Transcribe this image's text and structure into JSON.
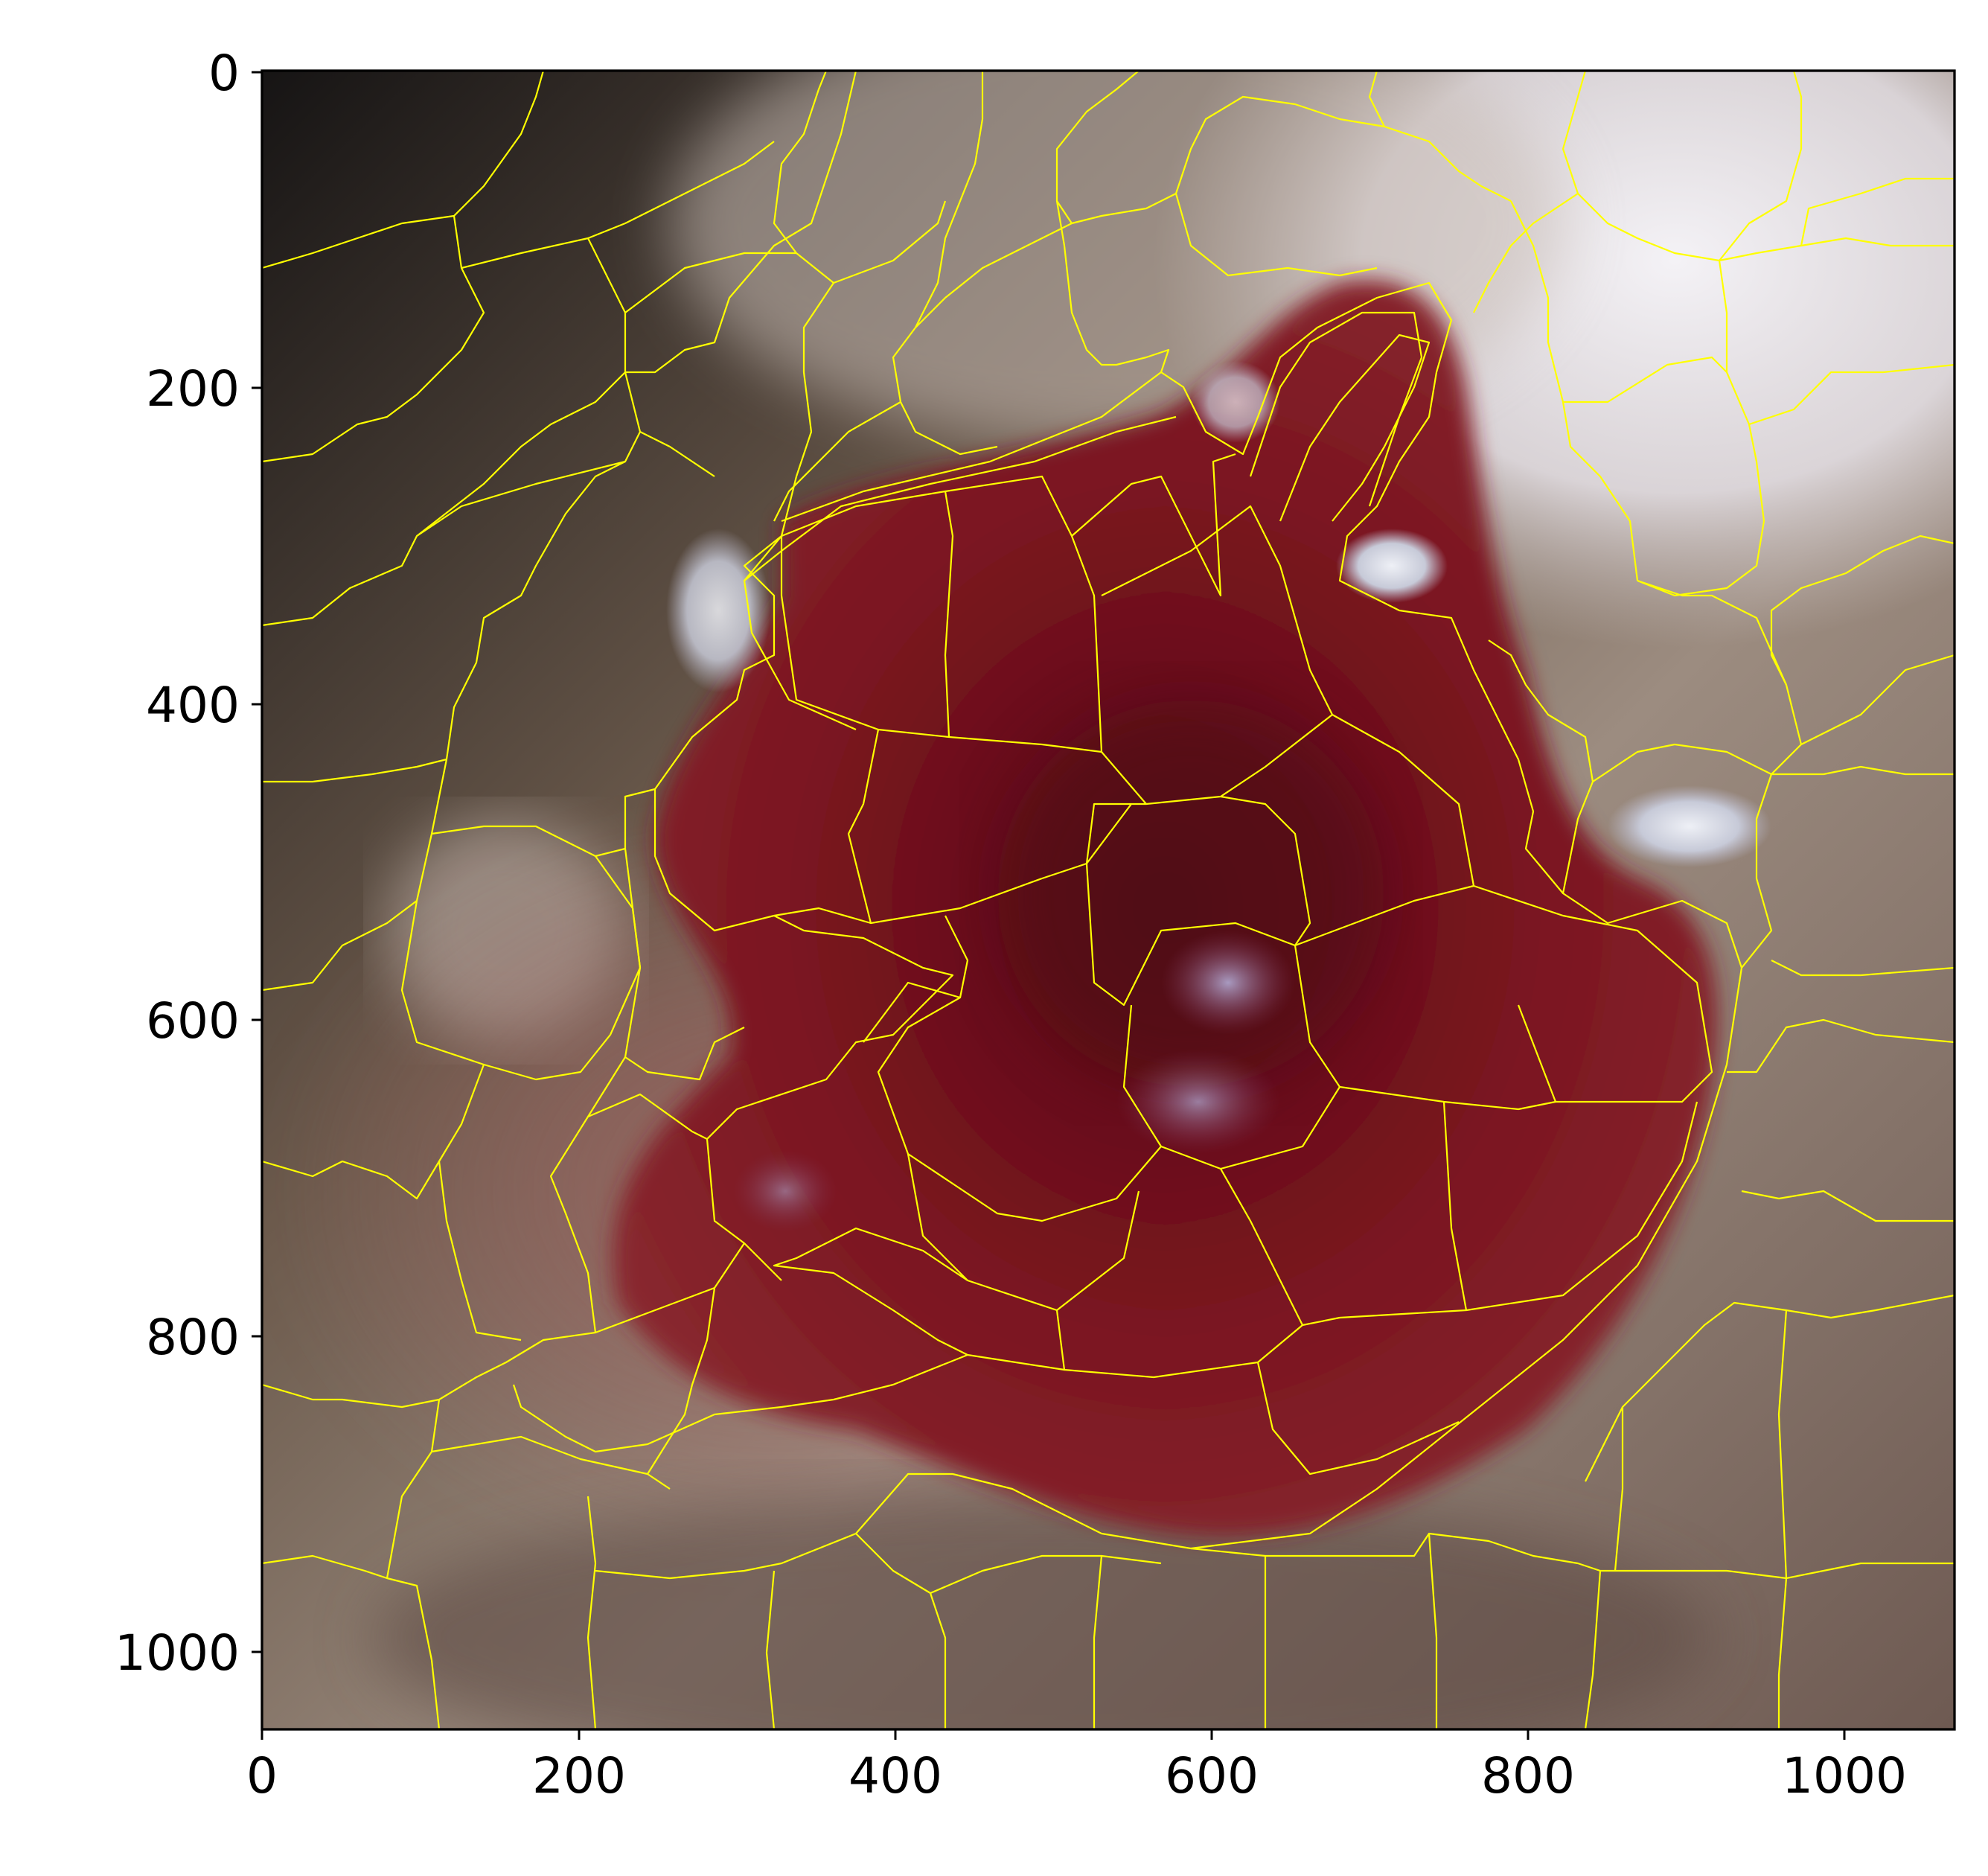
{
  "image": {
    "subject": "dermoscopic-skin-lesion-with-superpixel-boundaries",
    "boundary_color": "#ffff00",
    "background_colors": {
      "dark_corner": "#1a1616",
      "skin_tan": "#9a8a80",
      "highlight": "#ecebf0",
      "lesion": "#7a1320",
      "lesion_dark": "#560a14"
    }
  },
  "axes": {
    "x_ticks": [
      "0",
      "200",
      "400",
      "600",
      "800",
      "1000"
    ],
    "y_ticks": [
      "0",
      "200",
      "400",
      "600",
      "800",
      "1000"
    ],
    "x_range": [
      0,
      1070
    ],
    "y_range": [
      1050,
      0
    ]
  }
}
